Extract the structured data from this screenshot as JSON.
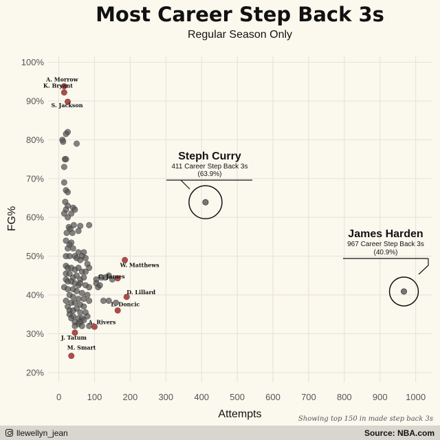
{
  "chart_data": {
    "type": "scatter",
    "title": "Most Career Step Back 3s",
    "subtitle": "Regular Season Only",
    "xlabel": "Attempts",
    "ylabel": "FG%",
    "xlim": [
      -30,
      1045
    ],
    "ylim": [
      17.5,
      101.5
    ],
    "xticks": [
      0,
      100,
      200,
      300,
      400,
      500,
      600,
      700,
      800,
      900,
      1000
    ],
    "xtick_labels": [
      "0",
      "100",
      "200",
      "300",
      "400",
      "500",
      "600",
      "700",
      "800",
      "900",
      "1000"
    ],
    "yticks": [
      20,
      30,
      40,
      50,
      60,
      70,
      80,
      90,
      100
    ],
    "ytick_labels": [
      "20%",
      "30%",
      "40%",
      "50%",
      "60%",
      "70%",
      "80%",
      "90%",
      "100%"
    ],
    "grid": true,
    "caption": "Showing top 150 in made step back 3s",
    "gray_points": [
      [
        10,
        80
      ],
      [
        12,
        79.5
      ],
      [
        25,
        82
      ],
      [
        20,
        81.5
      ],
      [
        50,
        79
      ],
      [
        17,
        75
      ],
      [
        20,
        75
      ],
      [
        15,
        73
      ],
      [
        15,
        69
      ],
      [
        20,
        67
      ],
      [
        25,
        66.5
      ],
      [
        18,
        64
      ],
      [
        25,
        63
      ],
      [
        20,
        62
      ],
      [
        40,
        62.5
      ],
      [
        45,
        62
      ],
      [
        35,
        61
      ],
      [
        15,
        61
      ],
      [
        25,
        60
      ],
      [
        42,
        58
      ],
      [
        60,
        57.8
      ],
      [
        28,
        57.5
      ],
      [
        32,
        57
      ],
      [
        38,
        56
      ],
      [
        55,
        56.5
      ],
      [
        85,
        58
      ],
      [
        22,
        56
      ],
      [
        20,
        54
      ],
      [
        30,
        53
      ],
      [
        25,
        52
      ],
      [
        35,
        53.5
      ],
      [
        40,
        52
      ],
      [
        55,
        51
      ],
      [
        70,
        51
      ],
      [
        65,
        50
      ],
      [
        20,
        50
      ],
      [
        30,
        50
      ],
      [
        45,
        50
      ],
      [
        50,
        49.5
      ],
      [
        60,
        49
      ],
      [
        75,
        49.5
      ],
      [
        80,
        48
      ],
      [
        85,
        47
      ],
      [
        20,
        47.5
      ],
      [
        25,
        47
      ],
      [
        35,
        47
      ],
      [
        45,
        46.5
      ],
      [
        55,
        47
      ],
      [
        65,
        46
      ],
      [
        75,
        46
      ],
      [
        20,
        45.5
      ],
      [
        30,
        45.5
      ],
      [
        40,
        44.5
      ],
      [
        50,
        45
      ],
      [
        60,
        44
      ],
      [
        70,
        44.5
      ],
      [
        20,
        44
      ],
      [
        25,
        43.5
      ],
      [
        35,
        43.5
      ],
      [
        45,
        43
      ],
      [
        55,
        42.5
      ],
      [
        60,
        43
      ],
      [
        75,
        42.5
      ],
      [
        85,
        42
      ],
      [
        15,
        42
      ],
      [
        25,
        41.5
      ],
      [
        40,
        41.5
      ],
      [
        50,
        41
      ],
      [
        65,
        40.5
      ],
      [
        80,
        40
      ],
      [
        30,
        40
      ],
      [
        40,
        39.5
      ],
      [
        55,
        39
      ],
      [
        70,
        39
      ],
      [
        85,
        38.5
      ],
      [
        20,
        38.5
      ],
      [
        35,
        38
      ],
      [
        45,
        38
      ],
      [
        60,
        37.5
      ],
      [
        70,
        37
      ],
      [
        25,
        37
      ],
      [
        30,
        36
      ],
      [
        40,
        36
      ],
      [
        50,
        36.5
      ],
      [
        60,
        35.5
      ],
      [
        75,
        35.5
      ],
      [
        30,
        35
      ],
      [
        40,
        34.5
      ],
      [
        55,
        34
      ],
      [
        65,
        34
      ],
      [
        80,
        34.5
      ],
      [
        35,
        34
      ],
      [
        45,
        33
      ],
      [
        60,
        33
      ],
      [
        70,
        33.5
      ],
      [
        55,
        32.5
      ],
      [
        45,
        32
      ],
      [
        65,
        32
      ],
      [
        85,
        32
      ],
      [
        105,
        44
      ],
      [
        120,
        44.5
      ],
      [
        130,
        44.5
      ],
      [
        140,
        45
      ],
      [
        110,
        42
      ],
      [
        125,
        38.5
      ],
      [
        140,
        38.5
      ],
      [
        160,
        38
      ],
      [
        105,
        43
      ],
      [
        115,
        42.5
      ],
      [
        150,
        44
      ]
    ],
    "highlight_points": [
      {
        "name": "A. Morrow",
        "x": 15,
        "y": 93.8
      },
      {
        "name": "K. Bryant",
        "x": 15,
        "y": 92.2
      },
      {
        "name": "S. Jackson",
        "x": 25,
        "y": 89.8
      },
      {
        "name": "W. Matthews",
        "x": 185,
        "y": 49
      },
      {
        "name": "C. James",
        "x": 165,
        "y": 44.3
      },
      {
        "name": "D. Lillard",
        "x": 190,
        "y": 39.5
      },
      {
        "name": "L. Doncic",
        "x": 165,
        "y": 36
      },
      {
        "name": "A. Rivers",
        "x": 100,
        "y": 31.8
      },
      {
        "name": "J. Tatum",
        "x": 45,
        "y": 30.3
      },
      {
        "name": "M. Smart",
        "x": 35,
        "y": 24.3
      }
    ],
    "annotations": [
      {
        "name": "Steph Curry",
        "text": "411 Career Step Back 3s",
        "pct": "(63.9%)",
        "x": 411,
        "y": 63.9
      },
      {
        "name": "James Harden",
        "text": "967 Career Step Back 3s",
        "pct": "(40.9%)",
        "x": 967,
        "y": 40.9
      }
    ],
    "colors": {
      "background": "#fbf8ee",
      "grid": "#e4e1da",
      "gray_point": "#555555",
      "highlight_point": "#b54a44"
    }
  },
  "footer": {
    "handle": "llewellyn_jean",
    "icon": "instagram-icon",
    "source": "Source: NBA.com"
  }
}
